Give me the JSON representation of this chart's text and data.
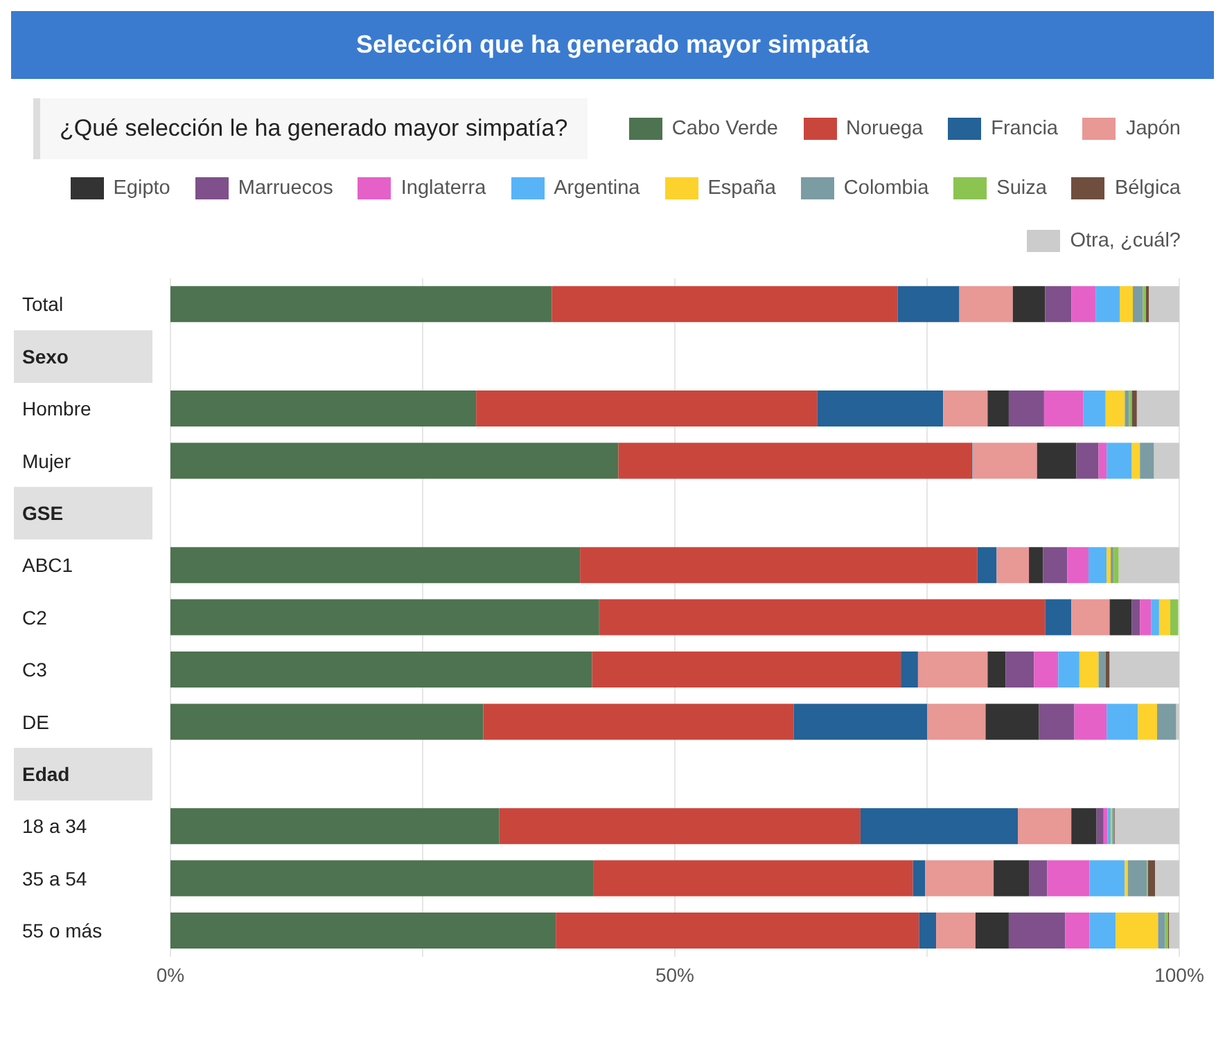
{
  "chart_data": {
    "type": "bar",
    "orientation": "horizontal",
    "stacked": true,
    "title": "Selección que ha generado mayor simpatía",
    "subtitle": "¿Qué selección le ha generado mayor simpatía?",
    "legend": "top",
    "grid": "x",
    "categories": [
      "Total",
      "Sexo",
      "Hombre",
      "Mujer",
      "GSE",
      "ABC1",
      "C2",
      "C3",
      "DE",
      "Edad",
      "18 a 34",
      "35 a 54",
      "55 o más"
    ],
    "xlim": [
      0,
      100
    ],
    "xticks": [
      {
        "value": 0,
        "label": "0%"
      },
      {
        "value": 25,
        "label": null
      },
      {
        "value": 50,
        "label": "50%"
      },
      {
        "value": 75,
        "label": null
      },
      {
        "value": 100,
        "label": "100%"
      }
    ],
    "series": [
      {
        "name": "Cabo Verde",
        "color": "#4e7350",
        "values": [
          37.8,
          null,
          30.3,
          44.4,
          null,
          40.6,
          42.5,
          41.8,
          31.0,
          null,
          32.6,
          41.9,
          38.2
        ]
      },
      {
        "name": "Noruega",
        "color": "#c9463d",
        "values": [
          34.3,
          null,
          33.8,
          35.0,
          null,
          39.4,
          44.2,
          30.6,
          30.8,
          null,
          35.8,
          31.7,
          36.0
        ]
      },
      {
        "name": "Francia",
        "color": "#246297",
        "values": [
          6.1,
          null,
          12.5,
          0.1,
          null,
          1.9,
          2.6,
          1.7,
          13.2,
          null,
          15.6,
          1.2,
          1.7
        ]
      },
      {
        "name": "Japón",
        "color": "#e89895",
        "values": [
          5.3,
          null,
          4.4,
          6.4,
          null,
          3.2,
          3.8,
          6.9,
          5.8,
          null,
          5.3,
          6.8,
          3.9
        ]
      },
      {
        "name": "Egipto",
        "color": "#333333",
        "values": [
          3.2,
          null,
          2.1,
          3.9,
          null,
          1.4,
          2.2,
          1.8,
          5.3,
          null,
          2.5,
          3.5,
          3.3
        ]
      },
      {
        "name": "Marruecos",
        "color": "#7f508b",
        "values": [
          2.6,
          null,
          3.5,
          2.2,
          null,
          2.4,
          0.8,
          2.8,
          3.5,
          null,
          0.7,
          1.8,
          5.6
        ]
      },
      {
        "name": "Inglaterra",
        "color": "#e561c7",
        "values": [
          2.4,
          null,
          3.9,
          0.8,
          null,
          2.1,
          1.1,
          2.4,
          3.2,
          null,
          0.4,
          4.2,
          2.4
        ]
      },
      {
        "name": "Argentina",
        "color": "#58b4f7",
        "values": [
          2.4,
          null,
          2.2,
          2.5,
          null,
          1.8,
          0.8,
          2.1,
          3.1,
          null,
          0.3,
          3.5,
          2.6
        ]
      },
      {
        "name": "España",
        "color": "#fdd22c",
        "values": [
          1.3,
          null,
          1.9,
          0.8,
          null,
          0.4,
          1.1,
          1.9,
          1.9,
          null,
          0.1,
          0.3,
          4.2
        ]
      },
      {
        "name": "Colombia",
        "color": "#7b9ca3",
        "values": [
          1.0,
          null,
          0.4,
          1.4,
          null,
          0.3,
          null,
          0.7,
          1.9,
          null,
          0.1,
          1.9,
          0.7
        ]
      },
      {
        "name": "Suiza",
        "color": "#8bc451",
        "values": [
          0.3,
          null,
          0.3,
          null,
          null,
          0.5,
          0.8,
          null,
          null,
          null,
          0.1,
          0.1,
          0.3
        ]
      },
      {
        "name": "Bélgica",
        "color": "#6f4e3e",
        "values": [
          0.3,
          null,
          0.5,
          null,
          null,
          null,
          null,
          0.4,
          null,
          null,
          0.1,
          0.7,
          0.1
        ]
      },
      {
        "name": "Otra, ¿cuál?",
        "color": "#cccccc",
        "values": [
          3.0,
          null,
          4.2,
          2.5,
          null,
          6.0,
          null,
          6.9,
          0.3,
          null,
          6.4,
          2.4,
          1.0
        ]
      }
    ]
  }
}
